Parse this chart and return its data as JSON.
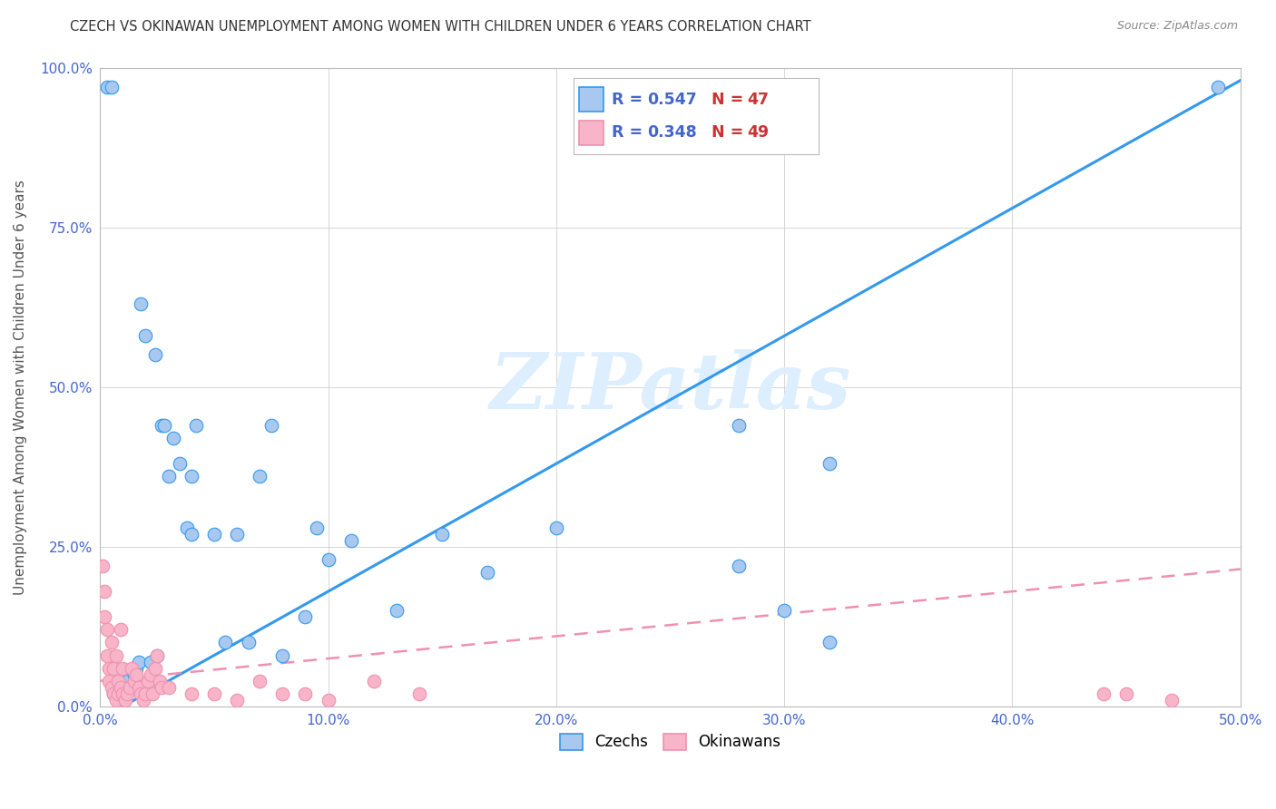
{
  "title": "CZECH VS OKINAWAN UNEMPLOYMENT AMONG WOMEN WITH CHILDREN UNDER 6 YEARS CORRELATION CHART",
  "source": "Source: ZipAtlas.com",
  "ylabel": "Unemployment Among Women with Children Under 6 years",
  "xlim": [
    0.0,
    0.5
  ],
  "ylim": [
    0.0,
    1.0
  ],
  "xticks": [
    0.0,
    0.1,
    0.2,
    0.3,
    0.4,
    0.5
  ],
  "xtick_labels": [
    "0.0%",
    "10.0%",
    "20.0%",
    "30.0%",
    "40.0%",
    "50.0%"
  ],
  "yticks": [
    0.0,
    0.25,
    0.5,
    0.75,
    1.0
  ],
  "ytick_labels": [
    "0.0%",
    "25.0%",
    "50.0%",
    "75.0%",
    "100.0%"
  ],
  "czechs_R": 0.547,
  "czechs_N": 47,
  "okinawans_R": 0.348,
  "okinawans_N": 49,
  "czech_color": "#a8c8f0",
  "okinawan_color": "#f8b4c8",
  "trend_czech_color": "#3399ee",
  "trend_okinawan_color": "#f090b0",
  "legend_R_color": "#4466cc",
  "legend_N_color": "#cc3333",
  "watermark": "ZIPatlas",
  "watermark_color": "#ddeeff",
  "czechs_x": [
    0.003,
    0.005,
    0.006,
    0.008,
    0.01,
    0.01,
    0.012,
    0.013,
    0.015,
    0.016,
    0.017,
    0.018,
    0.02,
    0.022,
    0.022,
    0.024,
    0.025,
    0.027,
    0.028,
    0.03,
    0.032,
    0.035,
    0.038,
    0.04,
    0.04,
    0.042,
    0.05,
    0.055,
    0.06,
    0.065,
    0.07,
    0.075,
    0.08,
    0.09,
    0.095,
    0.1,
    0.11,
    0.13,
    0.15,
    0.17,
    0.2,
    0.28,
    0.28,
    0.3,
    0.32,
    0.49,
    0.32
  ],
  "czechs_y": [
    0.97,
    0.97,
    0.02,
    0.03,
    0.04,
    0.02,
    0.04,
    0.03,
    0.05,
    0.06,
    0.07,
    0.63,
    0.58,
    0.07,
    0.03,
    0.55,
    0.08,
    0.44,
    0.44,
    0.36,
    0.42,
    0.38,
    0.28,
    0.36,
    0.27,
    0.44,
    0.27,
    0.1,
    0.27,
    0.1,
    0.36,
    0.44,
    0.08,
    0.14,
    0.28,
    0.23,
    0.26,
    0.15,
    0.27,
    0.21,
    0.28,
    0.44,
    0.22,
    0.15,
    0.1,
    0.97,
    0.38
  ],
  "okinawans_x": [
    0.001,
    0.002,
    0.002,
    0.003,
    0.003,
    0.004,
    0.004,
    0.005,
    0.005,
    0.006,
    0.006,
    0.007,
    0.007,
    0.008,
    0.008,
    0.009,
    0.009,
    0.01,
    0.01,
    0.011,
    0.012,
    0.013,
    0.014,
    0.015,
    0.016,
    0.017,
    0.018,
    0.019,
    0.02,
    0.021,
    0.022,
    0.023,
    0.024,
    0.025,
    0.026,
    0.027,
    0.03,
    0.04,
    0.05,
    0.06,
    0.07,
    0.08,
    0.09,
    0.1,
    0.12,
    0.14,
    0.44,
    0.45,
    0.47
  ],
  "okinawans_y": [
    0.22,
    0.18,
    0.14,
    0.12,
    0.08,
    0.06,
    0.04,
    0.03,
    0.1,
    0.02,
    0.06,
    0.01,
    0.08,
    0.02,
    0.04,
    0.03,
    0.12,
    0.02,
    0.06,
    0.01,
    0.02,
    0.03,
    0.06,
    0.04,
    0.05,
    0.03,
    0.02,
    0.01,
    0.02,
    0.04,
    0.05,
    0.02,
    0.06,
    0.08,
    0.04,
    0.03,
    0.03,
    0.02,
    0.02,
    0.01,
    0.04,
    0.02,
    0.02,
    0.01,
    0.04,
    0.02,
    0.02,
    0.02,
    0.01
  ]
}
